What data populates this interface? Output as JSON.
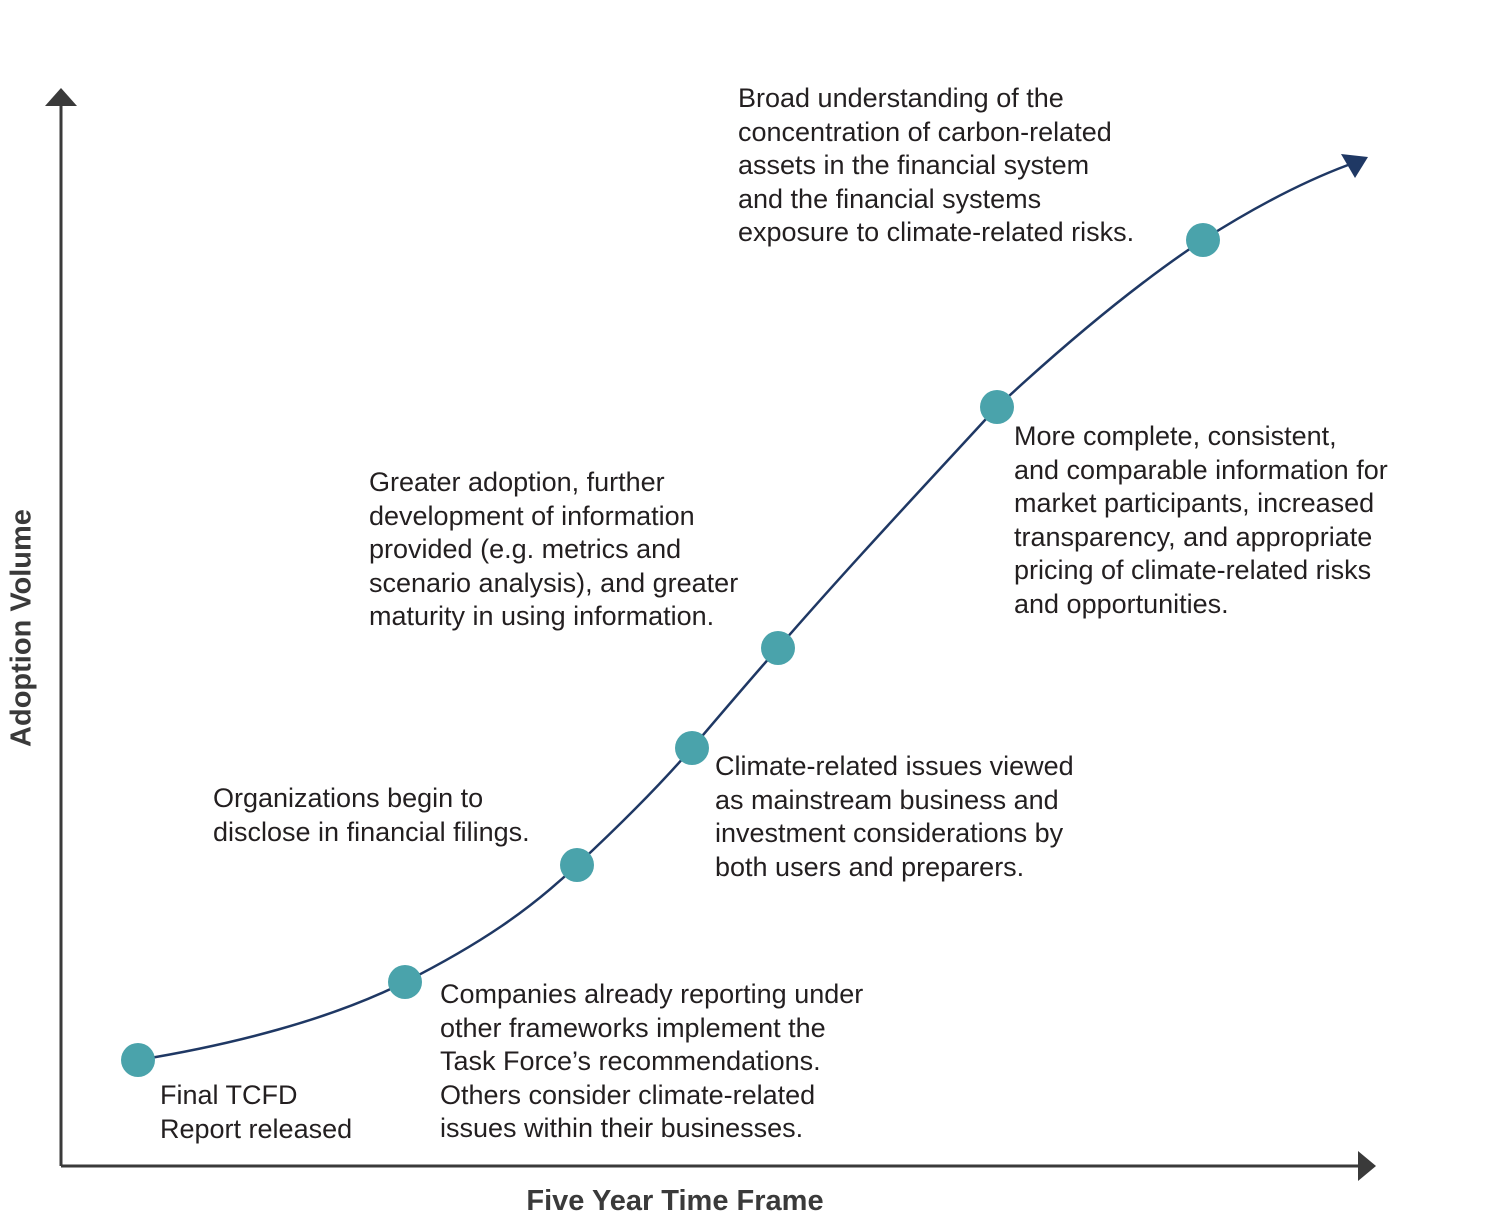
{
  "axes": {
    "x_title": "Five Year Time Frame",
    "y_title": "Adoption Volume"
  },
  "milestones": [
    {
      "id": "final-report",
      "label": "Final TCFD\nReport released"
    },
    {
      "id": "early-reporters",
      "label": "Companies already reporting under\nother frameworks implement the\nTask Force’s recommendations.\nOthers consider climate-related\nissues within their businesses."
    },
    {
      "id": "financial-filings",
      "label": "Organizations begin to\ndisclose in financial filings."
    },
    {
      "id": "mainstream",
      "label": "Climate-related issues viewed\nas mainstream business and\ninvestment considerations by\nboth users and preparers."
    },
    {
      "id": "greater-adoption",
      "label": "Greater adoption, further\ndevelopment of information\nprovided (e.g. metrics and\nscenario analysis), and greater\nmaturity in using information."
    },
    {
      "id": "complete-info",
      "label": "More complete, consistent,\nand comparable information for\nmarket participants, increased\ntransparency, and appropriate\npricing of climate-related risks\nand opportunities."
    },
    {
      "id": "broad-understanding",
      "label": "Broad understanding of the\nconcentration of carbon-related\nassets in the financial system\nand the financial systems\nexposure to climate-related risks."
    }
  ],
  "colors": {
    "axis": "#3a3a3a",
    "curve": "#1f3864",
    "milestone_dot": "#4aa3ab",
    "text": "#231f20"
  }
}
